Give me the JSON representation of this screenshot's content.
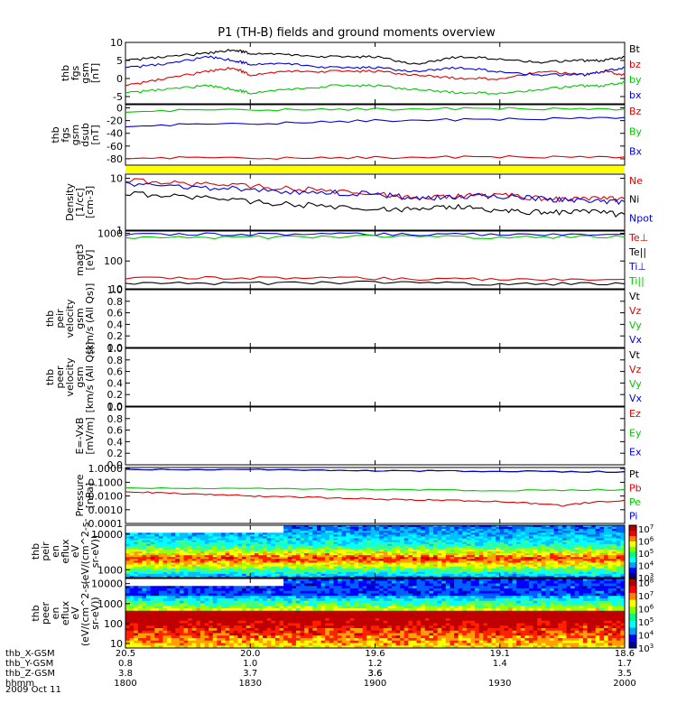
{
  "title": "P1 (TH-B) fields and ground moments overview",
  "date": "2009 Oct 11",
  "colors": {
    "black": "#000000",
    "red": "#e00000",
    "green": "#00c800",
    "blue": "#0000e0",
    "yellow": "#ffff00"
  },
  "chart_data": [
    {
      "type": "line",
      "ylabel": [
        "thb",
        "fgs",
        "gsm",
        "[nT]"
      ],
      "yticks": [
        "10",
        "5",
        "0",
        "-5"
      ],
      "ylim": [
        -7,
        10
      ],
      "legend": [
        {
          "name": "Bt",
          "color": "black"
        },
        {
          "name": "bz",
          "color": "red"
        },
        {
          "name": "by",
          "color": "green"
        },
        {
          "name": "bx",
          "color": "blue"
        }
      ],
      "series": [
        {
          "name": "Bt",
          "color": "black",
          "x": [
            1800,
            1810,
            1820,
            1826,
            1830,
            1840,
            1850,
            1900,
            1910,
            1920,
            1930,
            1940,
            1950,
            1955,
            2000
          ],
          "y": [
            5,
            6,
            7,
            8,
            7,
            6.5,
            6,
            6,
            4,
            6,
            5.5,
            4.5,
            5,
            5,
            6
          ]
        },
        {
          "name": "bz",
          "color": "red",
          "x": [
            1800,
            1810,
            1820,
            1826,
            1830,
            1840,
            1850,
            1900,
            1910,
            1920,
            1930,
            1940,
            1950,
            1955,
            2000
          ],
          "y": [
            -2,
            0,
            2,
            3,
            1,
            2,
            2,
            2,
            1,
            0,
            0,
            2,
            1,
            2,
            1
          ]
        },
        {
          "name": "by",
          "color": "green",
          "x": [
            1800,
            1810,
            1820,
            1826,
            1830,
            1840,
            1850,
            1900,
            1910,
            1920,
            1930,
            1940,
            1950,
            1955,
            2000
          ],
          "y": [
            -4,
            -3,
            -2,
            -3,
            -4,
            -3,
            -2,
            -2,
            -3,
            -4,
            -4,
            -3,
            -2,
            -2,
            -1
          ]
        },
        {
          "name": "bx",
          "color": "blue",
          "x": [
            1800,
            1810,
            1820,
            1826,
            1830,
            1840,
            1850,
            1900,
            1910,
            1920,
            1930,
            1940,
            1950,
            1955,
            2000
          ],
          "y": [
            3,
            4,
            6,
            5,
            4,
            4,
            3,
            3,
            2,
            3,
            2,
            1,
            1,
            2,
            3
          ]
        }
      ]
    },
    {
      "type": "line",
      "ylabel": [
        "thb",
        "fgs",
        "gsm",
        "dsub",
        "[nT]"
      ],
      "yticks": [
        "0",
        "-20",
        "-40",
        "-60",
        "-80"
      ],
      "ylim": [
        -90,
        5
      ],
      "legend": [
        {
          "name": "Bz",
          "color": "red"
        },
        {
          "name": "By",
          "color": "green"
        },
        {
          "name": "Bx",
          "color": "blue"
        }
      ],
      "series": [
        {
          "name": "Bz",
          "color": "red",
          "x": [
            1800,
            1830,
            1900,
            1930,
            2000
          ],
          "y": [
            -78,
            -79,
            -78,
            -77,
            -77
          ]
        },
        {
          "name": "By",
          "color": "green",
          "x": [
            1800,
            1830,
            1900,
            1930,
            2000
          ],
          "y": [
            -5,
            -3,
            -2,
            -1,
            -2
          ]
        },
        {
          "name": "Bx",
          "color": "blue",
          "x": [
            1800,
            1830,
            1900,
            1930,
            2000
          ],
          "y": [
            -28,
            -25,
            -20,
            -18,
            -15
          ]
        }
      ]
    },
    {
      "type": "line",
      "log": true,
      "ylabel": [
        "Density",
        "[1/cc]",
        "[cm-3]"
      ],
      "yticks": [
        "10",
        "1"
      ],
      "ylim": [
        1,
        12
      ],
      "legend": [
        {
          "name": "Ne",
          "color": "red"
        },
        {
          "name": "Ni",
          "color": "black"
        },
        {
          "name": "Npot",
          "color": "blue"
        }
      ],
      "series": [
        {
          "name": "Ne",
          "color": "red",
          "x": [
            1800,
            1815,
            1830,
            1845,
            1900,
            1910,
            1920,
            1930,
            1940,
            1950,
            2000
          ],
          "y": [
            9,
            8,
            7,
            6,
            5,
            4,
            4.5,
            5,
            4,
            4,
            4
          ]
        },
        {
          "name": "Ni",
          "color": "black",
          "x": [
            1800,
            1815,
            1830,
            1845,
            1900,
            1910,
            1920,
            1930,
            1940,
            1950,
            2000
          ],
          "y": [
            5,
            4.5,
            3.5,
            3,
            2.5,
            2.5,
            2.8,
            2.4,
            2.2,
            2.3,
            2
          ]
        },
        {
          "name": "Npot",
          "color": "blue",
          "x": [
            1800,
            1815,
            1830,
            1845,
            1900,
            1910,
            1920,
            1930,
            1940,
            1950,
            2000
          ],
          "y": [
            8,
            7,
            6,
            5.5,
            5,
            4.2,
            4.5,
            4.6,
            4,
            3.8,
            3.5
          ]
        }
      ]
    },
    {
      "type": "line",
      "log": true,
      "ylabel": [
        "magt3",
        "[eV]"
      ],
      "yticks": [
        "1000",
        "100",
        "10"
      ],
      "ylim": [
        10,
        1200
      ],
      "legend": [
        {
          "name": "Te⊥",
          "color": "red"
        },
        {
          "name": "Te||",
          "color": "black"
        },
        {
          "name": "Ti⊥",
          "color": "blue"
        },
        {
          "name": "Ti||",
          "color": "green"
        }
      ],
      "series": [
        {
          "name": "Te⊥",
          "color": "red",
          "x": [
            1800,
            1830,
            1900,
            1930,
            2000
          ],
          "y": [
            24,
            25,
            24,
            22,
            22
          ]
        },
        {
          "name": "Te||",
          "color": "black",
          "x": [
            1800,
            1830,
            1900,
            1930,
            2000
          ],
          "y": [
            16,
            16,
            17,
            15,
            15
          ]
        },
        {
          "name": "Ti⊥",
          "color": "blue",
          "x": [
            1800,
            1830,
            1900,
            1930,
            2000
          ],
          "y": [
            900,
            920,
            940,
            900,
            930
          ]
        },
        {
          "name": "Ti||",
          "color": "green",
          "x": [
            1800,
            1830,
            1900,
            1930,
            2000
          ],
          "y": [
            700,
            720,
            760,
            720,
            740
          ]
        }
      ]
    },
    {
      "type": "line",
      "ylabel": [
        "thb",
        "peir",
        "velocity",
        "gsm",
        "[km/s (All Qs)]"
      ],
      "yticks": [
        "1.0",
        "0.8",
        "0.6",
        "0.4",
        "0.2",
        "0.0"
      ],
      "ylim": [
        0,
        1
      ],
      "legend": [
        {
          "name": "Vt",
          "color": "black"
        },
        {
          "name": "Vz",
          "color": "red"
        },
        {
          "name": "Vy",
          "color": "green"
        },
        {
          "name": "Vx",
          "color": "blue"
        }
      ],
      "series": []
    },
    {
      "type": "line",
      "ylabel": [
        "thb",
        "peer",
        "velocity",
        "gsm",
        "[km/s (All Qs)]"
      ],
      "yticks": [
        "1.0",
        "0.8",
        "0.6",
        "0.4",
        "0.2",
        "0.0"
      ],
      "ylim": [
        0,
        1
      ],
      "legend": [
        {
          "name": "Vt",
          "color": "black"
        },
        {
          "name": "Vz",
          "color": "red"
        },
        {
          "name": "Vy",
          "color": "green"
        },
        {
          "name": "Vx",
          "color": "blue"
        }
      ],
      "series": []
    },
    {
      "type": "line",
      "ylabel": [
        "E=-VxB",
        "[mV/m]"
      ],
      "yticks": [
        "1.0",
        "0.8",
        "0.6",
        "0.4",
        "0.2",
        "0.0"
      ],
      "ylim": [
        0,
        1
      ],
      "legend": [
        {
          "name": "Ez",
          "color": "red"
        },
        {
          "name": "Ey",
          "color": "green"
        },
        {
          "name": "Ex",
          "color": "blue"
        }
      ],
      "series": []
    },
    {
      "type": "line",
      "log": true,
      "ylabel": [
        "Pressure",
        "[nPa]"
      ],
      "yticks": [
        "1.0000",
        "0.1000",
        "0.0100",
        "0.0010",
        "0.0001"
      ],
      "ylim": [
        0.0001,
        1.2
      ],
      "legend": [
        {
          "name": "Pt",
          "color": "black"
        },
        {
          "name": "Pb",
          "color": "red"
        },
        {
          "name": "Pe",
          "color": "green"
        },
        {
          "name": "Pi",
          "color": "blue"
        }
      ],
      "series": [
        {
          "name": "Pt",
          "color": "black",
          "x": [
            1800,
            1830,
            1900,
            1930,
            2000
          ],
          "y": [
            0.9,
            0.85,
            0.7,
            0.65,
            0.6
          ]
        },
        {
          "name": "Pi",
          "color": "blue",
          "x": [
            1800,
            1830,
            1900,
            1930,
            2000
          ],
          "y": [
            0.88,
            0.84,
            0.69,
            0.64,
            0.59
          ]
        },
        {
          "name": "Pe",
          "color": "green",
          "x": [
            1800,
            1830,
            1900,
            1930,
            2000
          ],
          "y": [
            0.04,
            0.035,
            0.03,
            0.025,
            0.03
          ]
        },
        {
          "name": "Pb",
          "color": "red",
          "x": [
            1800,
            1815,
            1830,
            1845,
            1900,
            1915,
            1930,
            1945,
            2000
          ],
          "y": [
            0.02,
            0.015,
            0.01,
            0.008,
            0.006,
            0.005,
            0.004,
            0.002,
            0.005
          ]
        }
      ]
    },
    {
      "type": "heatmap",
      "ylabel": [
        "thb",
        "peir",
        "en",
        "eflux",
        "eV",
        "(eV/(cm^2-s-",
        "sr-eV))"
      ],
      "yticks": [
        "10000",
        "1000"
      ],
      "colorbar_ticks": [
        "10^7",
        "10^6",
        "10^5",
        "10^4",
        "10^3"
      ]
    },
    {
      "type": "heatmap",
      "ylabel": [
        "thb",
        "peer",
        "en",
        "eflux",
        "eV",
        "(eV/(cm^2-s-",
        "sr-eV))"
      ],
      "yticks": [
        "10000",
        "1000",
        "100",
        "10"
      ],
      "colorbar_ticks": [
        "10^8",
        "10^7",
        "10^6",
        "10^5",
        "10^4",
        "10^3"
      ]
    }
  ],
  "xaxis": {
    "rows": [
      {
        "label": "thb_X-GSM",
        "values": [
          "20.5",
          "20.0",
          "19.6",
          "19.1",
          "18.6"
        ]
      },
      {
        "label": "thb_Y-GSM",
        "values": [
          "0.8",
          "1.0",
          "1.2",
          "1.4",
          "1.7"
        ]
      },
      {
        "label": "thb_Z-GSM",
        "values": [
          "3.8",
          "3.7",
          "3.6",
          "3.6",
          "3.5"
        ]
      },
      {
        "label": "hhmm",
        "values": [
          "1800",
          "1830",
          "1900",
          "1930",
          "2000"
        ]
      }
    ],
    "x_range": [
      1800,
      2000
    ]
  }
}
